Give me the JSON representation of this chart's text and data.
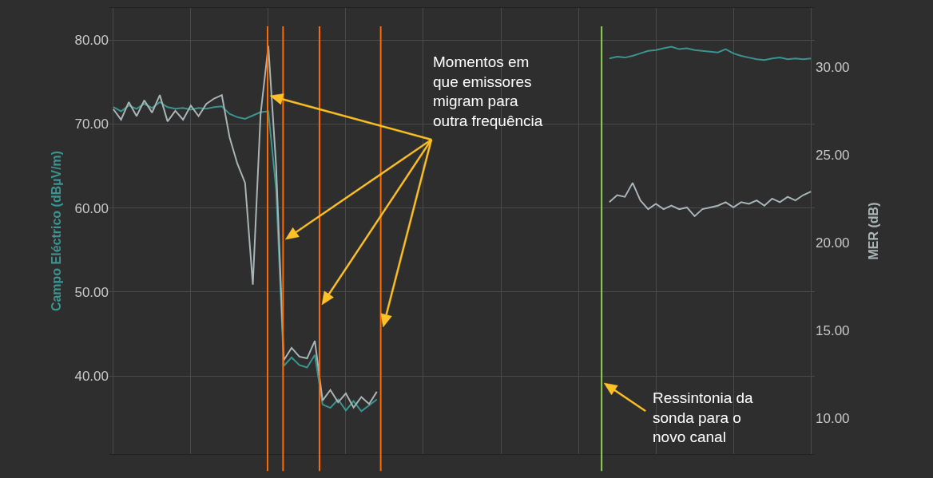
{
  "chart_data": {
    "type": "line",
    "ylabel": "Campo Eléctrico (dBµV/m)",
    "y2label": "MER (dB)",
    "categories": [
      null,
      null,
      null,
      null,
      null,
      null,
      null,
      null,
      null,
      null,
      null,
      null,
      null,
      null,
      null,
      null,
      null,
      null,
      null,
      null,
      null,
      null,
      null,
      null,
      null,
      null,
      null,
      null,
      null,
      null,
      null,
      null,
      null,
      null,
      null,
      null,
      null,
      null,
      null,
      null,
      null,
      null,
      null,
      null,
      null,
      null,
      null,
      null,
      null,
      null,
      null,
      null,
      null,
      null,
      null,
      null,
      null,
      null,
      null,
      null,
      null,
      null,
      null,
      null,
      null,
      null,
      null,
      null,
      null,
      null,
      null,
      null,
      null,
      null,
      null,
      null,
      null,
      null,
      null,
      null,
      null,
      null,
      null,
      null,
      null,
      null,
      null,
      null,
      null,
      null,
      null
    ],
    "series": [
      {
        "color": "#3a9490",
        "values": [
          72.0,
          71.5,
          72.2,
          71.8,
          72.4,
          71.9,
          72.6,
          72.0,
          71.8,
          71.9,
          71.7,
          71.9,
          71.8,
          72.0,
          72.1,
          71.2,
          70.8,
          70.6,
          71.0,
          71.4,
          71.5,
          62.3,
          41.2,
          42.2,
          41.3,
          41.0,
          42.5,
          36.6,
          36.2,
          37.2,
          35.9,
          37.0,
          35.8,
          36.5,
          37.2,
          null,
          null,
          null,
          null,
          null,
          null,
          null,
          null,
          null,
          null,
          null,
          null,
          null,
          null,
          null,
          null,
          null,
          null,
          null,
          null,
          null,
          null,
          null,
          null,
          null,
          null,
          null,
          null,
          null,
          77.8,
          78.0,
          77.9,
          78.1,
          78.4,
          78.7,
          78.8,
          79.0,
          79.2,
          78.9,
          79.0,
          78.8,
          78.7,
          78.6,
          78.5,
          78.9,
          78.4,
          78.1,
          77.9,
          77.7,
          77.6,
          77.8,
          77.9,
          77.7,
          77.8,
          77.7,
          77.8
        ]
      },
      {
        "color": "#a9b4b4",
        "axis": "y2",
        "values": [
          27.6,
          27.0,
          28.0,
          27.2,
          28.1,
          27.4,
          28.4,
          26.9,
          27.5,
          27.0,
          27.8,
          27.2,
          27.9,
          28.2,
          28.4,
          26.0,
          24.5,
          23.4,
          17.6,
          27.3,
          31.2,
          24.4,
          13.3,
          14.0,
          13.5,
          13.4,
          14.4,
          11.0,
          11.6,
          10.9,
          11.4,
          10.6,
          11.2,
          10.8,
          11.5,
          null,
          null,
          null,
          null,
          null,
          null,
          null,
          null,
          null,
          null,
          null,
          null,
          null,
          null,
          null,
          null,
          null,
          null,
          null,
          null,
          null,
          null,
          null,
          null,
          null,
          null,
          null,
          null,
          null,
          22.3,
          22.7,
          22.6,
          23.4,
          22.4,
          21.9,
          22.2,
          21.9,
          22.1,
          21.9,
          22.0,
          21.5,
          21.9,
          22.0,
          22.1,
          22.3,
          22.0,
          22.3,
          22.2,
          22.4,
          22.1,
          22.5,
          22.3,
          22.6,
          22.4,
          22.7,
          22.9
        ]
      }
    ],
    "ylim": [
      30.7,
      83.8
    ],
    "yticks": [
      {
        "value": 40,
        "label": "40.00"
      },
      {
        "value": 50,
        "label": "50.00"
      },
      {
        "value": 60,
        "label": "60.00"
      },
      {
        "value": 70,
        "label": "70.00"
      },
      {
        "value": 80,
        "label": "80.00"
      }
    ],
    "y2lim": [
      7.95,
      33.36
    ],
    "y2ticks": [
      {
        "value": 10,
        "label": "10.00"
      },
      {
        "value": 15,
        "label": "15.00"
      },
      {
        "value": 20,
        "label": "20.00"
      },
      {
        "value": 25,
        "label": "25.00"
      },
      {
        "value": 30,
        "label": "30.00"
      }
    ],
    "annotations": [
      "Momentos em\nque emissores\nmigram para\noutra frequência",
      "Ressintonia da\nsonda para o\nnovo canal"
    ],
    "grid": true,
    "tick_labels": "y",
    "marker": "none",
    "line_style": "solid"
  }
}
